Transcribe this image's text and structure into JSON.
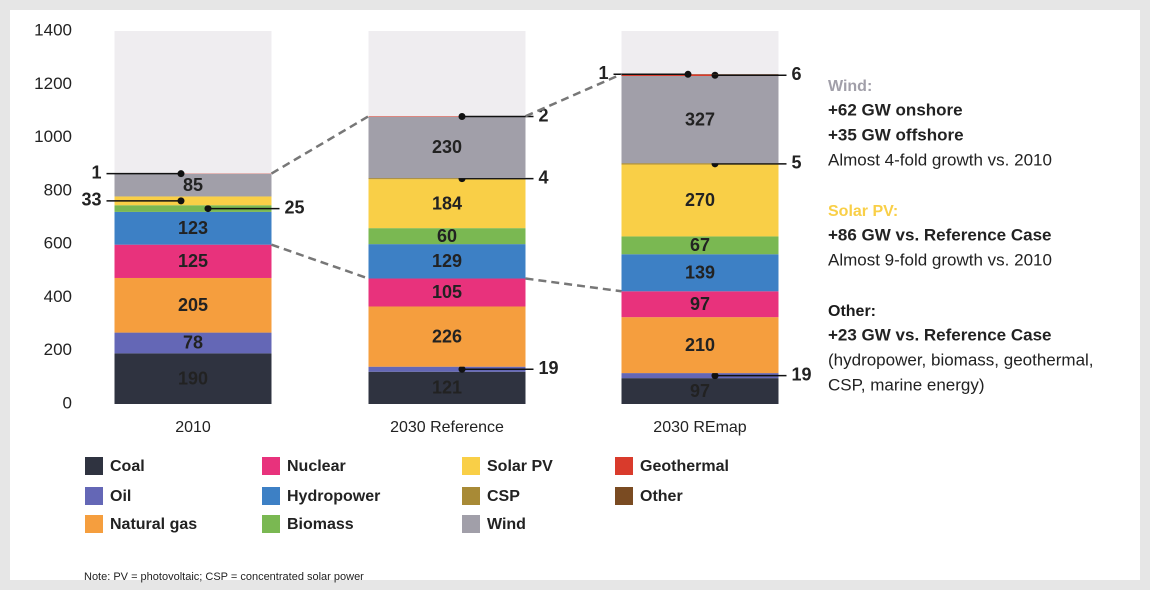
{
  "chart_data": {
    "type": "stacked_bar",
    "categories": [
      "2010",
      "2030 Reference",
      "2030 REmap"
    ],
    "series": [
      {
        "name": "Coal",
        "color": "#2f3340",
        "values": [
          190,
          121,
          97
        ]
      },
      {
        "name": "Oil",
        "color": "#6467b6",
        "values": [
          78,
          19,
          19
        ]
      },
      {
        "name": "Natural gas",
        "color": "#f59e3e",
        "values": [
          205,
          226,
          210
        ]
      },
      {
        "name": "Nuclear",
        "color": "#e8327c",
        "values": [
          125,
          105,
          97
        ]
      },
      {
        "name": "Hydropower",
        "color": "#3d80c5",
        "values": [
          123,
          129,
          139
        ]
      },
      {
        "name": "Biomass",
        "color": "#7ab852",
        "values": [
          25,
          60,
          67
        ]
      },
      {
        "name": "Solar PV",
        "color": "#f9cf47",
        "values": [
          33,
          184,
          270
        ]
      },
      {
        "name": "CSP",
        "color": "#a88a36",
        "values": [
          null,
          4,
          5
        ]
      },
      {
        "name": "Wind",
        "color": "#a19fa9",
        "values": [
          85,
          230,
          327
        ]
      },
      {
        "name": "Geothermal",
        "color": "#d93b2c",
        "values": [
          1,
          2,
          6
        ]
      },
      {
        "name": "Other",
        "color": "#7a4b22",
        "values": [
          null,
          null,
          1
        ]
      }
    ],
    "ylim": [
      0,
      1400
    ],
    "yticks": [
      0,
      200,
      400,
      600,
      800,
      1000,
      1200,
      1400
    ],
    "annotations": [
      {
        "heading": "Wind:",
        "color": "#a19fa9",
        "bold_lines": [
          "+62 GW onshore",
          "+35 GW offshore"
        ],
        "lines": [
          "Almost 4-fold growth vs. 2010"
        ]
      },
      {
        "heading": "Solar PV:",
        "color": "#f9cf47",
        "bold_lines": [
          "+86 GW vs. Reference Case"
        ],
        "lines": [
          "Almost 9-fold growth vs. 2010"
        ]
      },
      {
        "heading": "Other:",
        "color": "#1a1a1a",
        "bold_lines": [
          "+23 GW vs. Reference Case"
        ],
        "lines": [
          "(hydropower, biomass, geothermal,",
          "CSP, marine energy)"
        ]
      }
    ],
    "note": "Note: PV = photovoltaic; CSP = concentrated solar power"
  }
}
